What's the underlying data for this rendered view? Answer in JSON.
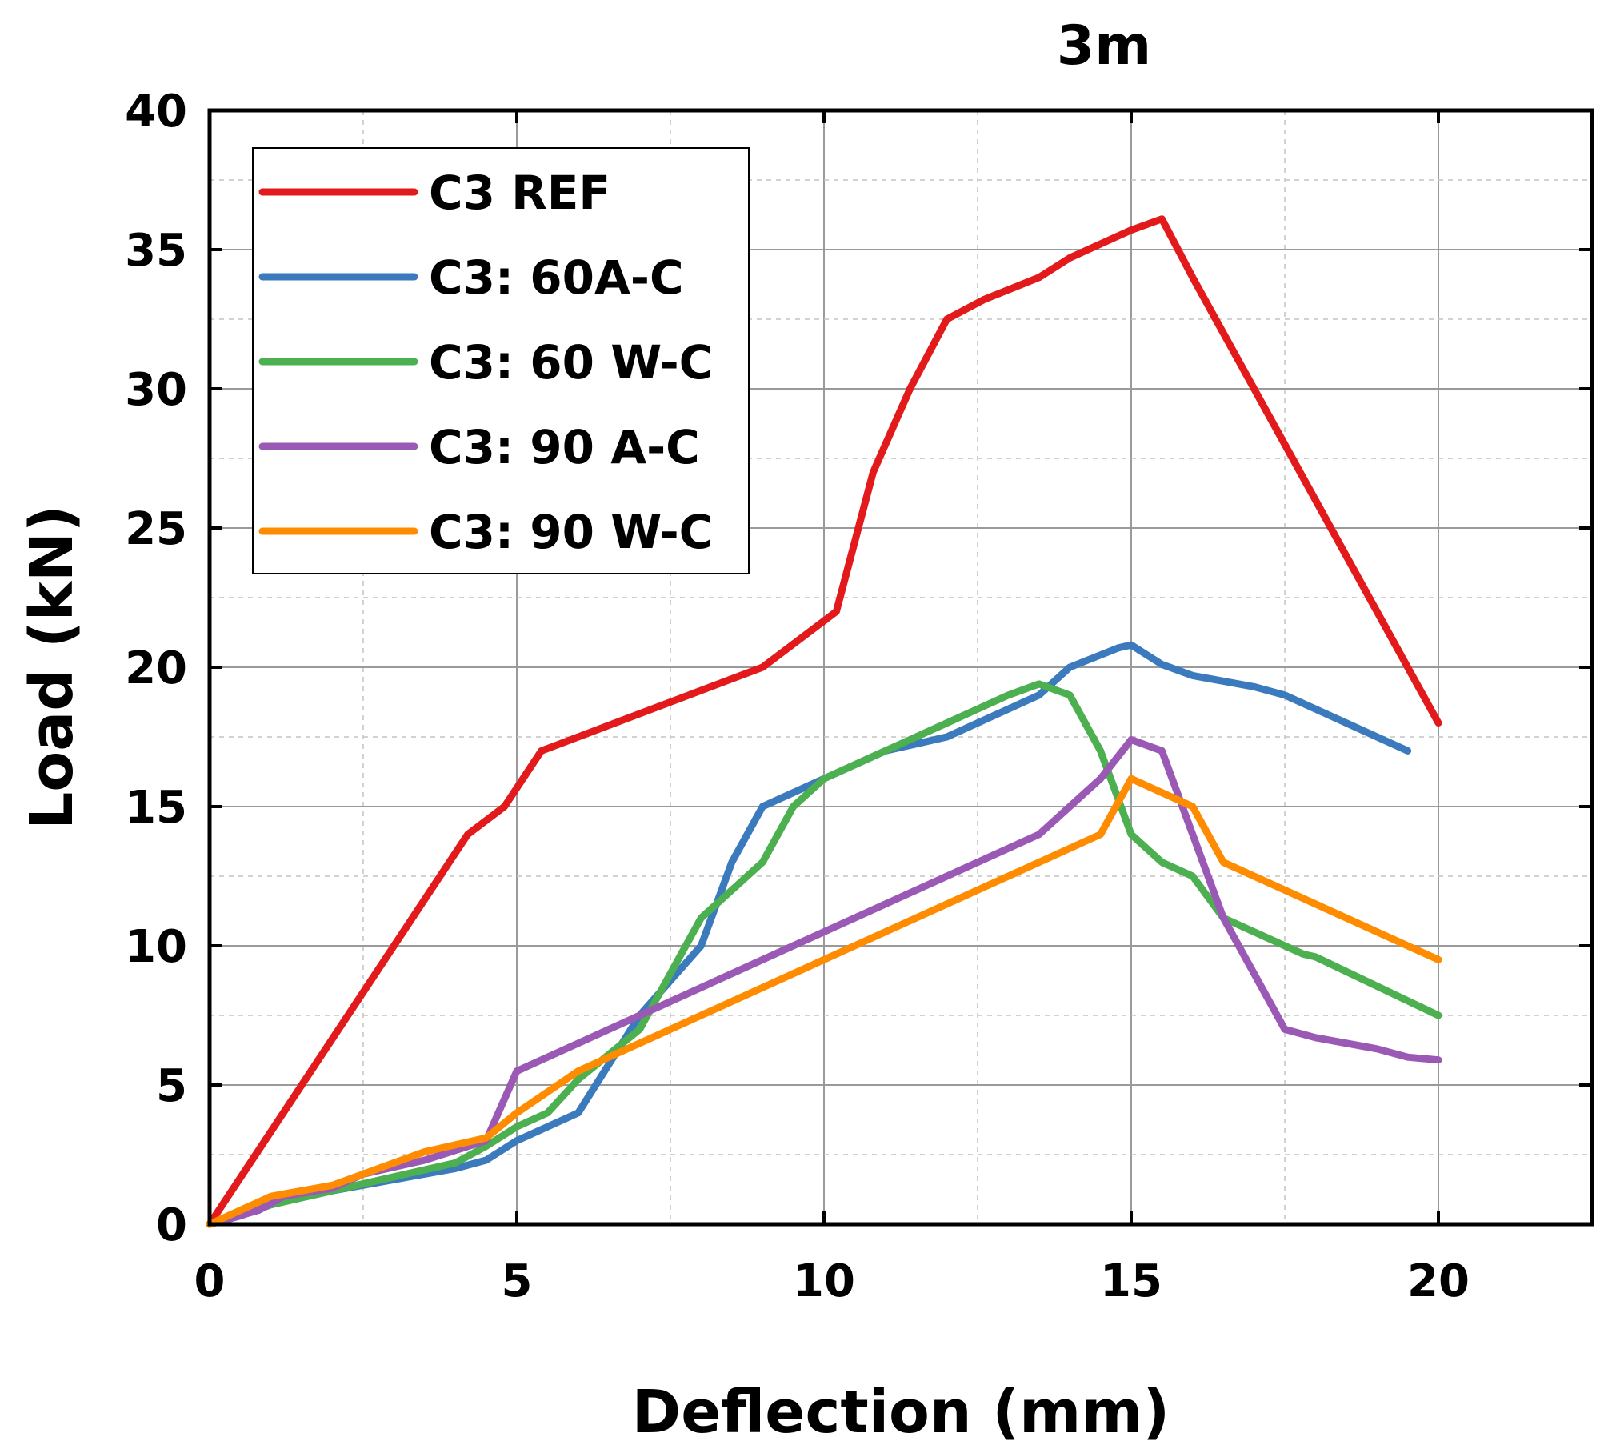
{
  "chart_data": {
    "type": "line",
    "title": "3m",
    "xlabel": "Deflection (mm)",
    "ylabel": "Load (kN)",
    "xlim": [
      0,
      22.5
    ],
    "ylim": [
      0,
      40
    ],
    "x_ticks": [
      0,
      5,
      10,
      15,
      20
    ],
    "y_ticks": [
      0,
      5,
      10,
      15,
      20,
      25,
      30,
      35,
      40
    ],
    "x_tick_labels": [
      "0",
      "5",
      "10",
      "15",
      "20"
    ],
    "y_tick_labels": [
      "0",
      "5",
      "10",
      "15",
      "20",
      "25",
      "30",
      "35",
      "40"
    ],
    "grid": true,
    "legend_position": "top-left",
    "series": [
      {
        "name": "C3 REF",
        "color": "#e31a1c",
        "x": [
          0,
          4.2,
          4.8,
          5.4,
          9.0,
          10.2,
          10.8,
          11.4,
          12.0,
          12.6,
          13.5,
          14.0,
          14.5,
          15.0,
          15.5,
          16.0,
          17.5,
          20.0
        ],
        "y": [
          0,
          14.0,
          15.0,
          17.0,
          20.0,
          22.0,
          27.0,
          30.0,
          32.5,
          33.2,
          34.0,
          34.7,
          35.2,
          35.7,
          36.1,
          34.0,
          28.0,
          18.0
        ]
      },
      {
        "name": "C3: 60A-C",
        "color": "#3a7abd",
        "x": [
          0,
          0.5,
          1.0,
          2.0,
          3.0,
          4.0,
          4.5,
          5.0,
          6.0,
          7.0,
          8.0,
          8.5,
          9.0,
          10.0,
          11.0,
          12.0,
          13.5,
          14.0,
          14.8,
          15.0,
          15.5,
          16.0,
          17.0,
          17.5,
          18.0,
          19.5
        ],
        "y": [
          0,
          0.3,
          0.7,
          1.2,
          1.6,
          2.0,
          2.3,
          3.0,
          4.0,
          7.5,
          10.0,
          13.0,
          15.0,
          16.0,
          17.0,
          17.5,
          19.0,
          20.0,
          20.7,
          20.8,
          20.1,
          19.7,
          19.3,
          19.0,
          18.5,
          17.0
        ]
      },
      {
        "name": "C3: 60 W-C",
        "color": "#4caf50",
        "x": [
          0,
          1.0,
          2.0,
          3.0,
          4.0,
          4.5,
          5.0,
          5.5,
          6.0,
          7.0,
          8.0,
          9.0,
          9.5,
          10.0,
          11.0,
          12.0,
          13.0,
          13.5,
          14.0,
          14.5,
          15.0,
          15.5,
          16.0,
          16.5,
          17.5,
          17.8,
          18.0,
          20.0
        ],
        "y": [
          0,
          0.7,
          1.2,
          1.7,
          2.2,
          2.8,
          3.5,
          4.0,
          5.2,
          7.0,
          11.0,
          13.0,
          15.0,
          16.0,
          17.0,
          18.0,
          19.0,
          19.4,
          19.0,
          17.0,
          14.0,
          13.0,
          12.5,
          11.0,
          10.0,
          9.7,
          9.6,
          7.5
        ]
      },
      {
        "name": "C3: 90 A-C",
        "color": "#9b59b6",
        "x": [
          0,
          0.8,
          1.2,
          2.0,
          2.5,
          3.5,
          4.5,
          5.0,
          6.0,
          9.0,
          12.0,
          13.5,
          14.5,
          15.0,
          15.5,
          16.0,
          16.5,
          17.5,
          18.0,
          19.0,
          19.5,
          20.0
        ],
        "y": [
          0,
          0.5,
          1.0,
          1.3,
          1.8,
          2.3,
          3.0,
          5.5,
          6.5,
          9.5,
          12.5,
          14.0,
          16.0,
          17.4,
          17.0,
          14.0,
          11.0,
          7.0,
          6.7,
          6.3,
          6.0,
          5.9
        ]
      },
      {
        "name": "C3: 90 W-C",
        "color": "#ff8c00",
        "x": [
          0,
          1.0,
          2.0,
          3.0,
          3.5,
          4.5,
          5.0,
          6.0,
          14.5,
          15.0,
          16.0,
          16.5,
          20.0
        ],
        "y": [
          0,
          1.0,
          1.4,
          2.2,
          2.6,
          3.1,
          4.0,
          5.5,
          14.0,
          16.0,
          15.0,
          13.0,
          9.5
        ]
      }
    ]
  }
}
